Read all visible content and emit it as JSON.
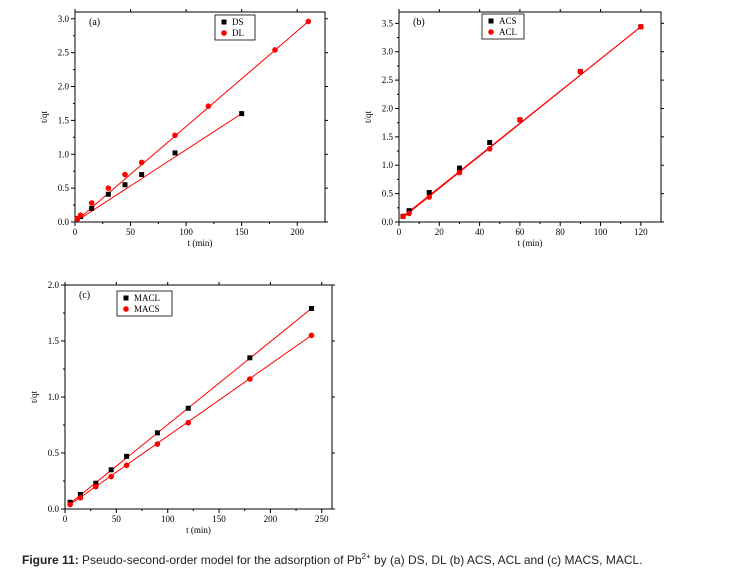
{
  "caption": {
    "label": "Figure 11:",
    "text_before": " Pseudo-second-order model for the adsorption of Pb",
    "superscript": "2+",
    "text_after": " by (a) DS, DL (b) ACS, ACL and (c) MACS, MACL."
  },
  "colors": {
    "black_series": "#000000",
    "red_series": "#ff0000",
    "fit_line": "#ff0000",
    "axis": "#000000"
  },
  "chart_data": [
    {
      "type": "scatter",
      "panel_label": "(a)",
      "xlabel": "t (min)",
      "ylabel": "t/qt",
      "xlim": [
        0,
        225
      ],
      "ylim": [
        0,
        3.1
      ],
      "xticks": [
        0,
        50,
        100,
        150,
        200
      ],
      "yticks": [
        0.0,
        0.5,
        1.0,
        1.5,
        2.0,
        2.5,
        3.0
      ],
      "ytick_labels": [
        "0.0",
        "0.5",
        "1.0",
        "1.5",
        "2.0",
        "2.5",
        "3.0"
      ],
      "legend_position": "top-center",
      "series": [
        {
          "name": "DS",
          "marker": "square",
          "color": "#000000",
          "x": [
            2,
            5,
            15,
            30,
            45,
            60,
            90,
            150
          ],
          "y": [
            0.05,
            0.08,
            0.2,
            0.41,
            0.55,
            0.7,
            1.02,
            1.6
          ],
          "fit": [
            [
              0,
              0.0
            ],
            [
              150,
              1.6
            ]
          ]
        },
        {
          "name": "DL",
          "marker": "circle",
          "color": "#ff0000",
          "x": [
            2,
            5,
            15,
            30,
            45,
            60,
            90,
            120,
            180,
            210
          ],
          "y": [
            0.05,
            0.1,
            0.28,
            0.5,
            0.7,
            0.88,
            1.28,
            1.71,
            2.54,
            2.96
          ],
          "fit": [
            [
              0,
              0.0
            ],
            [
              210,
              2.96
            ]
          ]
        }
      ]
    },
    {
      "type": "scatter",
      "panel_label": "(b)",
      "xlabel": "t (min)",
      "ylabel": "t/qt",
      "xlim": [
        0,
        130
      ],
      "ylim": [
        0,
        3.7
      ],
      "xticks": [
        0,
        20,
        40,
        60,
        80,
        100,
        120
      ],
      "yticks": [
        0.0,
        0.5,
        1.0,
        1.5,
        2.0,
        2.5,
        3.0,
        3.5
      ],
      "ytick_labels": [
        "0.0",
        "0.5",
        "1.0",
        "1.5",
        "2.0",
        "2.5",
        "3.0",
        "3.5"
      ],
      "legend_position": "top-center",
      "series": [
        {
          "name": "ACS",
          "marker": "square",
          "color": "#000000",
          "x": [
            2,
            5,
            15,
            30,
            45,
            60,
            90,
            120
          ],
          "y": [
            0.1,
            0.2,
            0.52,
            0.95,
            1.4,
            1.8,
            2.65,
            3.44
          ],
          "fit": [
            [
              2,
              0.1
            ],
            [
              120,
              3.44
            ]
          ]
        },
        {
          "name": "ACL",
          "marker": "circle",
          "color": "#ff0000",
          "x": [
            2,
            5,
            15,
            30,
            45,
            60,
            90,
            120
          ],
          "y": [
            0.1,
            0.15,
            0.44,
            0.87,
            1.29,
            1.8,
            2.65,
            3.44
          ],
          "fit": [
            [
              2,
              0.08
            ],
            [
              120,
              3.44
            ]
          ]
        }
      ]
    },
    {
      "type": "scatter",
      "panel_label": "(c)",
      "xlabel": "t (min)",
      "ylabel": "t/qt",
      "xlim": [
        0,
        260
      ],
      "ylim": [
        0,
        2.0
      ],
      "xticks": [
        0,
        50,
        100,
        150,
        200,
        250
      ],
      "yticks": [
        0.0,
        0.5,
        1.0,
        1.5,
        2.0
      ],
      "ytick_labels": [
        "0.0",
        "0.5",
        "1.0",
        "1.5",
        "2.0"
      ],
      "legend_position": "top-left",
      "series": [
        {
          "name": "MACL",
          "marker": "square",
          "color": "#000000",
          "x": [
            5,
            15,
            30,
            45,
            60,
            90,
            120,
            180,
            240
          ],
          "y": [
            0.06,
            0.13,
            0.23,
            0.35,
            0.47,
            0.68,
            0.9,
            1.35,
            1.79
          ],
          "fit": [
            [
              5,
              0.05
            ],
            [
              240,
              1.79
            ]
          ]
        },
        {
          "name": "MACS",
          "marker": "circle",
          "color": "#ff0000",
          "x": [
            5,
            15,
            30,
            45,
            60,
            90,
            120,
            180,
            240
          ],
          "y": [
            0.04,
            0.1,
            0.2,
            0.29,
            0.39,
            0.58,
            0.77,
            1.16,
            1.55
          ],
          "fit": [
            [
              5,
              0.04
            ],
            [
              240,
              1.55
            ]
          ]
        }
      ]
    }
  ]
}
